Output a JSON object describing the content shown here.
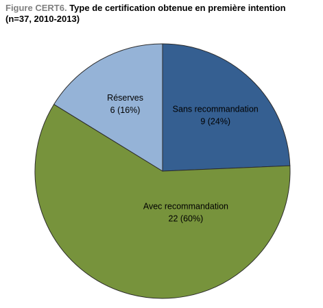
{
  "chart_data": {
    "type": "pie",
    "figure_label": "Figure CERT6.",
    "title": "Type de certification obtenue en première intention (n=37, 2010-2013)",
    "categories": [
      "Sans recommandation",
      "Avec recommandation",
      "Réserves"
    ],
    "values": [
      9,
      22,
      6
    ],
    "value_labels": [
      "9 (24%)",
      "22 (60%)",
      "6 (16%)"
    ],
    "colors": [
      "#355f91",
      "#77933c",
      "#95b3d7"
    ]
  }
}
